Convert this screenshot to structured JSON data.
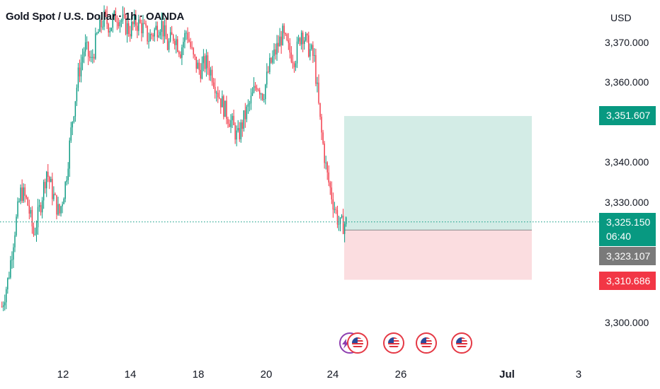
{
  "header": {
    "title": "Gold Spot / U.S. Dollar · 1h · OANDA",
    "currency": "USD"
  },
  "axis": {
    "y_ticks": [
      "3,370.000",
      "3,360.000",
      "3,340.000",
      "3,330.000",
      "3,300.000"
    ],
    "x_ticks": [
      {
        "label": "12",
        "bold": false
      },
      {
        "label": "14",
        "bold": false
      },
      {
        "label": "18",
        "bold": false
      },
      {
        "label": "20",
        "bold": false
      },
      {
        "label": "24",
        "bold": false
      },
      {
        "label": "26",
        "bold": false
      },
      {
        "label": "Jul",
        "bold": true
      },
      {
        "label": "3",
        "bold": false
      }
    ]
  },
  "price_tags": {
    "take_profit": "3,351.607",
    "last_price": "3,325.150",
    "countdown": "06:40",
    "entry": "3,323.107",
    "stop_loss": "3,310.686"
  },
  "colors": {
    "up": "#089981",
    "down": "#f23645",
    "profit_zone": "#d3ece6",
    "loss_zone": "#fbdde0",
    "price_line": "#089981",
    "entry_tag": "#7a7a7a"
  },
  "events": [
    {
      "icon": "lightning-us-flag-icon"
    },
    {
      "icon": "us-flag-icon"
    },
    {
      "icon": "us-flag-icon"
    },
    {
      "icon": "us-flag-icon"
    }
  ],
  "chart_data": {
    "type": "candlestick",
    "title": "Gold Spot / U.S. Dollar · 1h · OANDA",
    "ylabel": "USD",
    "ylim": [
      3295,
      3378
    ],
    "x_ticks": [
      "12",
      "14",
      "18",
      "20",
      "24",
      "26",
      "Jul",
      "3"
    ],
    "position": {
      "type": "long",
      "entry": 3323.107,
      "take_profit": 3351.607,
      "stop_loss": 3310.686,
      "last_price": 3325.15
    },
    "trend_closes": [
      3304,
      3311,
      3323,
      3333,
      3330,
      3322,
      3329,
      3338,
      3332,
      3327,
      3335,
      3350,
      3362,
      3369,
      3365,
      3372,
      3376,
      3374,
      3377,
      3375,
      3373,
      3375,
      3374,
      3371,
      3373,
      3375,
      3369,
      3372,
      3368,
      3373,
      3366,
      3363,
      3365,
      3362,
      3357,
      3353,
      3350,
      3346,
      3351,
      3355,
      3360,
      3357,
      3364,
      3368,
      3372,
      3368,
      3366,
      3373,
      3369,
      3366,
      3349,
      3337,
      3330,
      3324,
      3325
    ]
  }
}
